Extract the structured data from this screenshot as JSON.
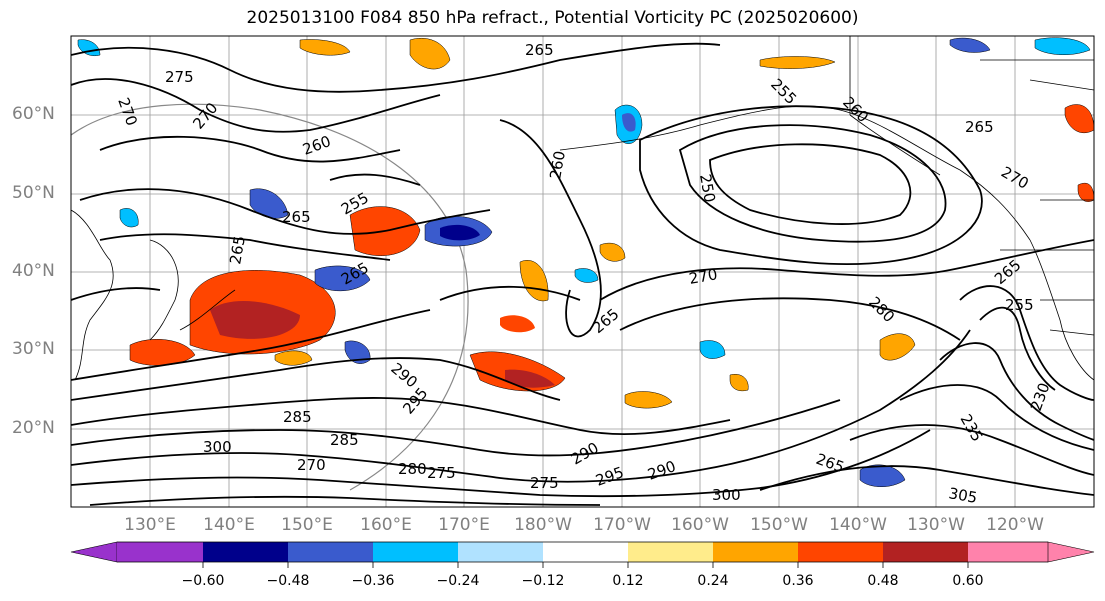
{
  "title": "2025013100 F084 850 hPa refract., Potential Vorticity PC (2025020600)",
  "lat_labels": [
    "60°N",
    "50°N",
    "40°N",
    "30°N",
    "20°N"
  ],
  "lon_labels": [
    "130°E",
    "140°E",
    "150°E",
    "160°E",
    "170°E",
    "180°W",
    "170°W",
    "160°W",
    "150°W",
    "140°W",
    "130°W",
    "120°W"
  ],
  "colorbar": {
    "ticks": [
      "−0.60",
      "−0.48",
      "−0.36",
      "−0.24",
      "−0.12",
      "0.12",
      "0.24",
      "0.36",
      "0.48",
      "0.60"
    ],
    "colors": [
      "#9932cc",
      "#00008b",
      "#3a5bcd",
      "#00bfff",
      "#b0e2ff",
      "#ffffff",
      "#ffec8b",
      "#ffa500",
      "#ff4500",
      "#b22222",
      "#ff82ab"
    ]
  },
  "contour_labels": [
    "275",
    "270",
    "270",
    "265",
    "260",
    "255",
    "265",
    "265",
    "260",
    "255",
    "260",
    "250",
    "265",
    "270",
    "270",
    "265",
    "280",
    "265",
    "265",
    "255",
    "290",
    "295",
    "285",
    "285",
    "300",
    "270",
    "275",
    "280",
    "290",
    "295",
    "290",
    "275",
    "300",
    "265",
    "305",
    "230",
    "235"
  ]
}
